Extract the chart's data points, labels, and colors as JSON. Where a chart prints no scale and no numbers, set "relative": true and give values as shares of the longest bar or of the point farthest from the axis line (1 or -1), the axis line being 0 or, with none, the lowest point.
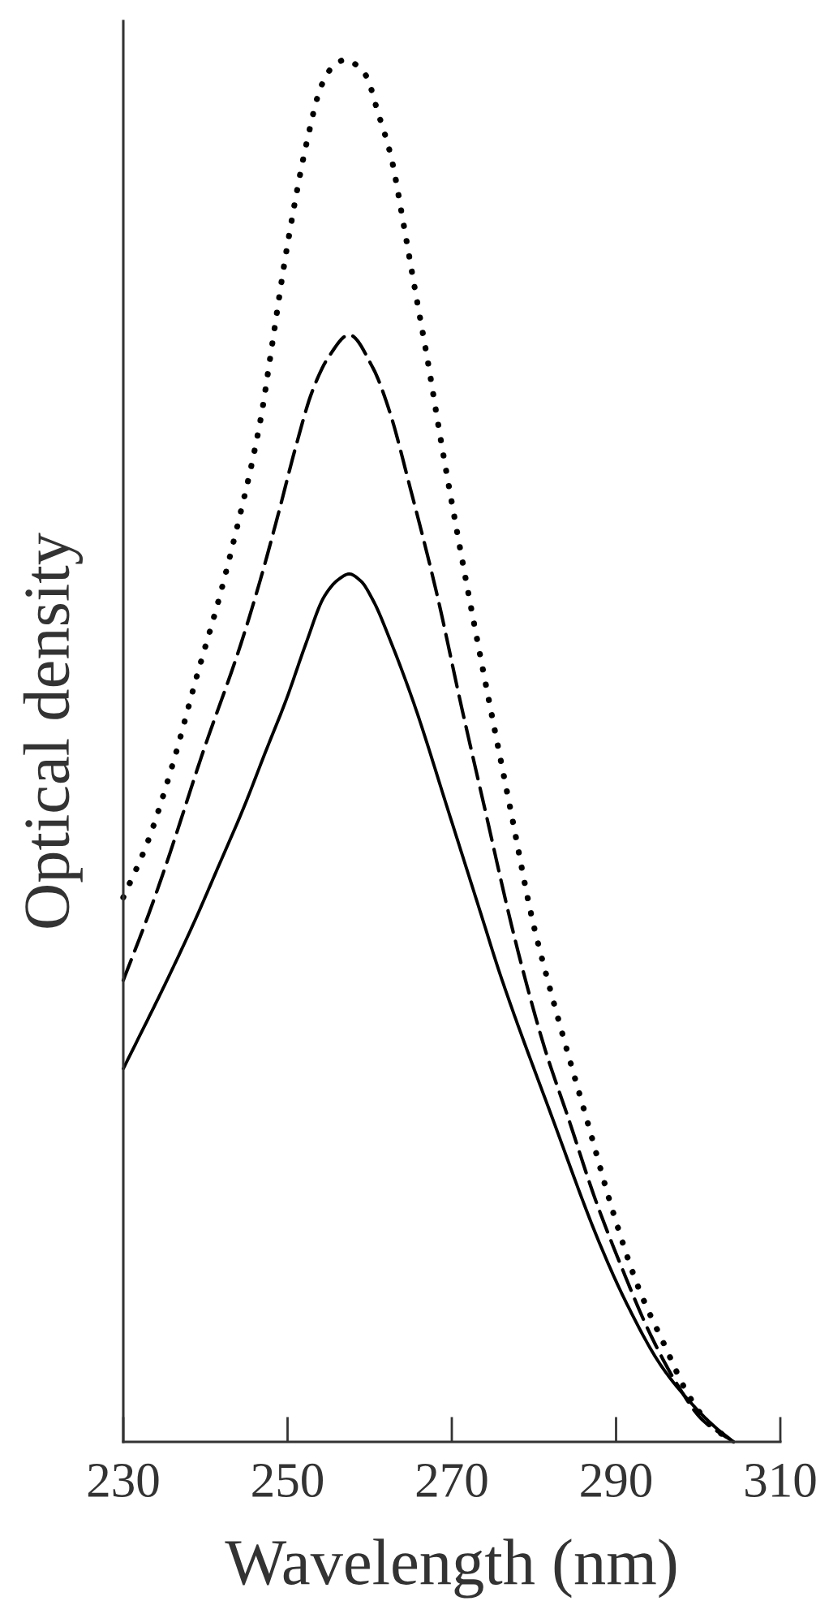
{
  "chart_data": {
    "type": "line",
    "xlabel": "Wavelength (nm)",
    "ylabel": "Optical density",
    "relative": true,
    "xlim": [
      230,
      310
    ],
    "xticks": [
      230,
      250,
      270,
      290,
      310
    ],
    "grid": false,
    "series": [
      {
        "color": "#000000",
        "line_style": "solid",
        "x": [
          230.0,
          235.4,
          238.7,
          241.7,
          244.6,
          247.3,
          249.9,
          252.2,
          254.5,
          256.2,
          257.5,
          258.9,
          260.4,
          262.7,
          265.4,
          269.6,
          273.6,
          275.9,
          282.2,
          287.9,
          291.3,
          295.5,
          299.3,
          302.0,
          304.3
        ],
        "values": [
          0.27,
          0.335,
          0.377,
          0.418,
          0.458,
          0.499,
          0.538,
          0.577,
          0.612,
          0.624,
          0.628,
          0.623,
          0.609,
          0.577,
          0.534,
          0.456,
          0.381,
          0.338,
          0.235,
          0.145,
          0.1,
          0.055,
          0.027,
          0.011,
          0.0
        ]
      },
      {
        "color": "#000000",
        "line_style": "dashed",
        "x": [
          230.0,
          233.1,
          235.4,
          239.7,
          244.3,
          246.7,
          248.9,
          251.0,
          253.0,
          255.0,
          257.5,
          260.4,
          262.4,
          264.9,
          268.2,
          271.1,
          274.1,
          277.1,
          278.8,
          281.3,
          284.2,
          287.5,
          290.7,
          294.0,
          297.4,
          300.5,
          304.3
        ],
        "values": [
          0.334,
          0.382,
          0.421,
          0.499,
          0.577,
          0.624,
          0.672,
          0.72,
          0.76,
          0.785,
          0.801,
          0.777,
          0.746,
          0.691,
          0.613,
          0.534,
          0.456,
          0.378,
          0.338,
          0.285,
          0.234,
          0.175,
          0.126,
          0.08,
          0.042,
          0.016,
          0.0
        ]
      },
      {
        "color": "#000000",
        "line_style": "dotted",
        "x": [
          230.0,
          232.9,
          236.0,
          239.0,
          241.7,
          243.9,
          245.8,
          246.9,
          247.9,
          249.9,
          252.4,
          254.1,
          255.5,
          257.0,
          259.5,
          261.0,
          262.6,
          264.1,
          265.6,
          267.1,
          268.6,
          270.2,
          272.3,
          274.6,
          277.2,
          279.8,
          281.5,
          283.9,
          286.4,
          289.7,
          292.7,
          295.9,
          298.8,
          301.5,
          304.3
        ],
        "values": [
          0.394,
          0.433,
          0.49,
          0.555,
          0.611,
          0.663,
          0.712,
          0.746,
          0.785,
          0.863,
          0.942,
          0.981,
          0.995,
          1.0,
          0.989,
          0.962,
          0.93,
          0.882,
          0.831,
          0.781,
          0.727,
          0.673,
          0.605,
          0.534,
          0.456,
          0.378,
          0.338,
          0.286,
          0.234,
          0.165,
          0.112,
          0.07,
          0.034,
          0.012,
          0.0
        ]
      }
    ]
  }
}
